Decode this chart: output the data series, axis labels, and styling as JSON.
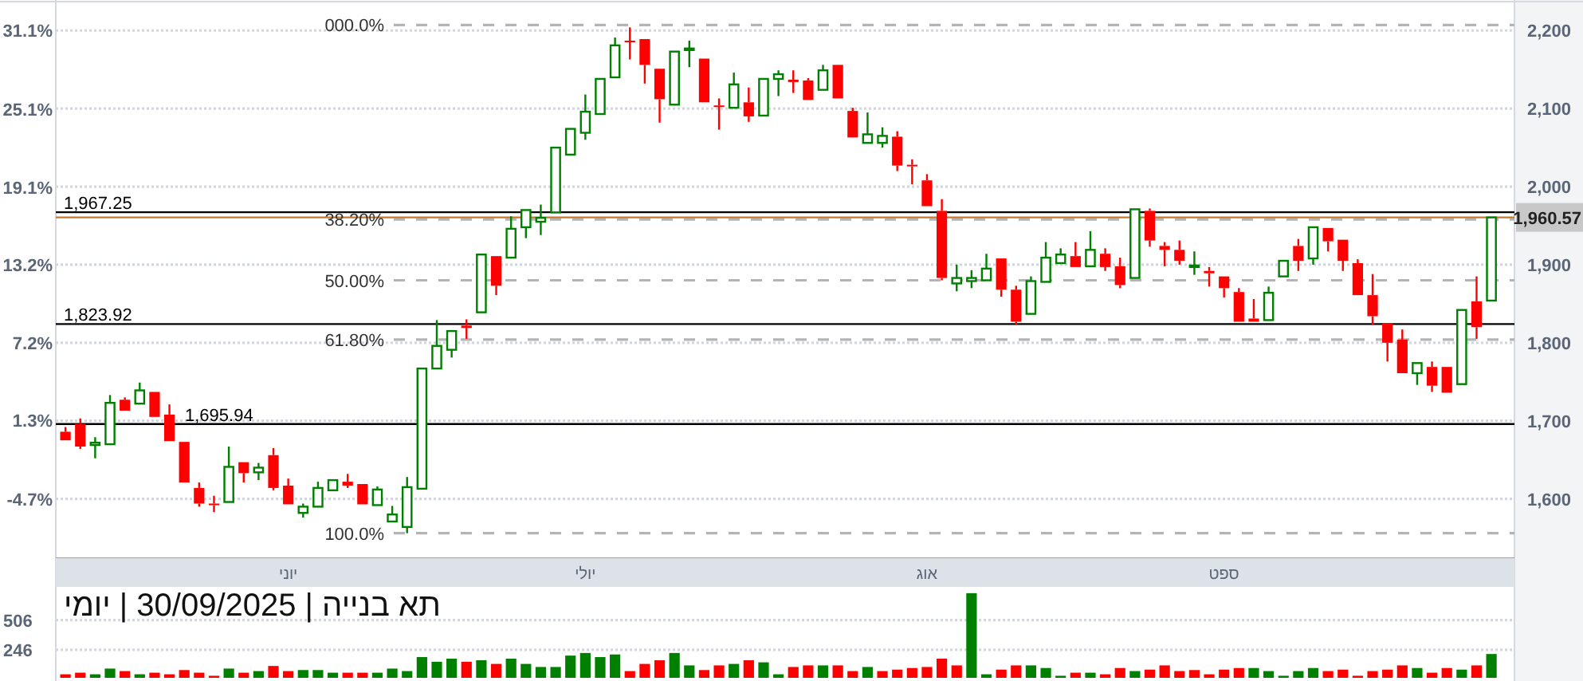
{
  "chart_data": [
    {
      "type": "candlestick",
      "categories": [
        null,
        null,
        null,
        null,
        null,
        null,
        null,
        null,
        null,
        null,
        null,
        null,
        null,
        null,
        null,
        "יוני",
        null,
        null,
        null,
        null,
        null,
        null,
        null,
        null,
        null,
        null,
        null,
        null,
        null,
        null,
        null,
        null,
        null,
        null,
        null,
        "יולי",
        null,
        null,
        null,
        null,
        null,
        null,
        null,
        null,
        null,
        null,
        null,
        null,
        null,
        null,
        null,
        null,
        null,
        null,
        null,
        null,
        null,
        null,
        "אוג",
        null,
        null,
        null,
        null,
        null,
        null,
        null,
        null,
        null,
        null,
        null,
        null,
        null,
        null,
        null,
        null,
        null,
        null,
        null,
        "ספט",
        null,
        null,
        null,
        null,
        null,
        null,
        null,
        null,
        null,
        null,
        null,
        null,
        null,
        null,
        null,
        null,
        null,
        null
      ],
      "ohlc": [
        [
          1686,
          1692,
          1675,
          1675
        ],
        [
          1696,
          1703,
          1664,
          1667
        ],
        [
          1669,
          1679,
          1652,
          1672
        ],
        [
          1670,
          1733,
          1669,
          1723
        ],
        [
          1727,
          1730,
          1712,
          1713
        ],
        [
          1722,
          1749,
          1720,
          1739
        ],
        [
          1737,
          1737,
          1704,
          1705
        ],
        [
          1708,
          1721,
          1674,
          1674
        ],
        [
          1673,
          1674,
          1619,
          1621
        ],
        [
          1614,
          1621,
          1590,
          1594
        ],
        [
          1594,
          1604,
          1583,
          1592
        ],
        [
          1596,
          1667,
          1595,
          1641
        ],
        [
          1647,
          1647,
          1621,
          1633
        ],
        [
          1634,
          1646,
          1624,
          1640
        ],
        [
          1656,
          1665,
          1611,
          1614
        ],
        [
          1617,
          1626,
          1592,
          1593
        ],
        [
          1582,
          1594,
          1576,
          1590
        ],
        [
          1590,
          1622,
          1589,
          1614
        ],
        [
          1611,
          1626,
          1609,
          1624
        ],
        [
          1622,
          1632,
          1614,
          1617
        ],
        [
          1619,
          1619,
          1592,
          1593
        ],
        [
          1592,
          1616,
          1590,
          1612
        ],
        [
          1571,
          1591,
          1570,
          1580
        ],
        [
          1564,
          1628,
          1556,
          1615
        ],
        [
          1613,
          1768,
          1612,
          1767
        ],
        [
          1767,
          1829,
          1766,
          1796
        ],
        [
          1791,
          1816,
          1781,
          1815
        ],
        [
          1822,
          1830,
          1805,
          1819
        ],
        [
          1839,
          1914,
          1838,
          1913
        ],
        [
          1911,
          1911,
          1861,
          1873
        ],
        [
          1909,
          1962,
          1907,
          1946
        ],
        [
          1948,
          1972,
          1934,
          1970
        ],
        [
          1955,
          1977,
          1938,
          1960
        ],
        [
          1967,
          2051,
          1966,
          2050
        ],
        [
          2041,
          2075,
          2039,
          2074
        ],
        [
          2069,
          2118,
          2060,
          2096
        ],
        [
          2093,
          2139,
          2092,
          2138
        ],
        [
          2140,
          2191,
          2139,
          2181
        ],
        [
          2187,
          2204,
          2163,
          2185
        ],
        [
          2189,
          2189,
          2132,
          2156
        ],
        [
          2151,
          2151,
          2082,
          2112
        ],
        [
          2105,
          2174,
          2104,
          2173
        ],
        [
          2175,
          2187,
          2153,
          2177
        ],
        [
          2164,
          2164,
          2106,
          2108
        ],
        [
          2104,
          2113,
          2073,
          2103
        ],
        [
          2101,
          2146,
          2100,
          2131
        ],
        [
          2108,
          2127,
          2083,
          2090
        ],
        [
          2091,
          2139,
          2090,
          2138
        ],
        [
          2138,
          2149,
          2116,
          2144
        ],
        [
          2137,
          2149,
          2120,
          2134
        ],
        [
          2136,
          2139,
          2110,
          2111
        ],
        [
          2124,
          2156,
          2123,
          2149
        ],
        [
          2156,
          2156,
          2112,
          2113
        ],
        [
          2097,
          2101,
          2062,
          2063
        ],
        [
          2056,
          2095,
          2055,
          2067
        ],
        [
          2056,
          2076,
          2050,
          2065
        ],
        [
          2064,
          2071,
          2020,
          2027
        ],
        [
          2028,
          2035,
          2003,
          2026
        ],
        [
          2008,
          2016,
          1973,
          1975
        ],
        [
          1969,
          1984,
          1880,
          1883
        ],
        [
          1876,
          1900,
          1866,
          1883
        ],
        [
          1879,
          1893,
          1870,
          1883
        ],
        [
          1880,
          1914,
          1878,
          1895
        ],
        [
          1908,
          1908,
          1859,
          1868
        ],
        [
          1868,
          1873,
          1823,
          1827
        ],
        [
          1837,
          1885,
          1836,
          1879
        ],
        [
          1878,
          1929,
          1876,
          1909
        ],
        [
          1902,
          1921,
          1900,
          1913
        ],
        [
          1911,
          1929,
          1895,
          1897
        ],
        [
          1898,
          1943,
          1897,
          1919
        ],
        [
          1914,
          1921,
          1892,
          1897
        ],
        [
          1898,
          1909,
          1870,
          1874
        ],
        [
          1883,
          1973,
          1882,
          1971
        ],
        [
          1969,
          1972,
          1923,
          1931
        ],
        [
          1924,
          1929,
          1898,
          1919
        ],
        [
          1919,
          1931,
          1900,
          1905
        ],
        [
          1898,
          1917,
          1887,
          1899
        ],
        [
          1892,
          1897,
          1872,
          1889
        ],
        [
          1885,
          1887,
          1858,
          1870
        ],
        [
          1865,
          1870,
          1826,
          1827
        ],
        [
          1831,
          1856,
          1826,
          1827
        ],
        [
          1829,
          1872,
          1827,
          1864
        ],
        [
          1885,
          1906,
          1884,
          1905
        ],
        [
          1924,
          1933,
          1892,
          1905
        ],
        [
          1908,
          1949,
          1900,
          1948
        ],
        [
          1947,
          1947,
          1917,
          1930
        ],
        [
          1932,
          1932,
          1892,
          1905
        ],
        [
          1902,
          1907,
          1860,
          1861
        ],
        [
          1861,
          1888,
          1823,
          1834
        ],
        [
          1825,
          1825,
          1776,
          1800
        ],
        [
          1804,
          1817,
          1760,
          1761
        ],
        [
          1761,
          1775,
          1746,
          1774
        ],
        [
          1769,
          1776,
          1737,
          1745
        ],
        [
          1769,
          1769,
          1735,
          1736
        ],
        [
          1747,
          1843,
          1746,
          1842
        ],
        [
          1853,
          1885,
          1805,
          1820
        ],
        [
          1854,
          1962,
          1853,
          1960.57
        ]
      ],
      "colors": [
        "#ff0000",
        "#ff0000",
        "#008000",
        "#008000",
        "#ff0000",
        "#008000",
        "#ff0000",
        "#ff0000",
        "#ff0000",
        "#ff0000",
        "#ff0000",
        "#008000",
        "#ff0000",
        "#008000",
        "#ff0000",
        "#ff0000",
        "#008000",
        "#008000",
        "#008000",
        "#ff0000",
        "#ff0000",
        "#008000",
        "#008000",
        "#008000",
        "#008000",
        "#008000",
        "#008000",
        "#ff0000",
        "#008000",
        "#ff0000",
        "#008000",
        "#008000",
        "#008000",
        "#008000",
        "#008000",
        "#008000",
        "#008000",
        "#008000",
        "#ff0000",
        "#ff0000",
        "#ff0000",
        "#008000",
        "#008000",
        "#ff0000",
        "#ff0000",
        "#008000",
        "#ff0000",
        "#008000",
        "#008000",
        "#ff0000",
        "#ff0000",
        "#008000",
        "#ff0000",
        "#ff0000",
        "#008000",
        "#008000",
        "#ff0000",
        "#ff0000",
        "#ff0000",
        "#ff0000",
        "#008000",
        "#008000",
        "#008000",
        "#ff0000",
        "#ff0000",
        "#008000",
        "#008000",
        "#008000",
        "#ff0000",
        "#008000",
        "#ff0000",
        "#ff0000",
        "#008000",
        "#ff0000",
        "#ff0000",
        "#ff0000",
        "#008000",
        "#ff0000",
        "#ff0000",
        "#ff0000",
        "#ff0000",
        "#008000",
        "#008000",
        "#ff0000",
        "#008000",
        "#ff0000",
        "#ff0000",
        "#ff0000",
        "#ff0000",
        "#ff0000",
        "#ff0000",
        "#008000",
        "#ff0000",
        "#ff0000",
        "#008000",
        "#ff0000",
        "#008000"
      ],
      "ylim": [
        1524,
        2235
      ],
      "yticks": [
        {
          "value": 1600,
          "label": "1,600"
        },
        {
          "value": 1700,
          "label": "1,700"
        },
        {
          "value": 1800,
          "label": "1,800"
        },
        {
          "value": 1900,
          "label": "1,900"
        },
        {
          "value": 2000,
          "label": "2,000"
        },
        {
          "value": 2100,
          "label": "2,100"
        },
        {
          "value": 2200,
          "label": "2,200"
        }
      ],
      "y2lim": [
        -9.23,
        33.19
      ],
      "y2ticks": [
        {
          "value": -4.7,
          "label": "-4.7%"
        },
        {
          "value": 1.3,
          "label": "1.3%"
        },
        {
          "value": 7.2,
          "label": "7.2%"
        },
        {
          "value": 13.2,
          "label": "13.2%"
        },
        {
          "value": 19.1,
          "label": "19.1%"
        },
        {
          "value": 25.1,
          "label": "25.1%"
        },
        {
          "value": 31.1,
          "label": "31.1%"
        }
      ],
      "grid": "y",
      "ref_lines": [
        {
          "axis": "y",
          "value": 2207,
          "color": "#b4b4b4",
          "line_style": "dashed"
        },
        {
          "axis": "y",
          "value": 1958,
          "color": "#b4b4b4",
          "line_style": "dashed"
        },
        {
          "axis": "y",
          "value": 1880,
          "color": "#b4b4b4",
          "line_style": "dashed"
        },
        {
          "axis": "y",
          "value": 1804,
          "color": "#b4b4b4",
          "line_style": "dashed"
        },
        {
          "axis": "y",
          "value": 1556,
          "color": "#b4b4b4",
          "line_style": "dashed"
        },
        {
          "axis": "y",
          "value": 1967.25,
          "label": "1,967.25",
          "color": "#000000",
          "line_style": "solid"
        },
        {
          "axis": "y",
          "value": 1823.92,
          "label": "1,823.92",
          "color": "#000000",
          "line_style": "solid"
        },
        {
          "axis": "y",
          "value": 1695.94,
          "label": "1,695.94",
          "color": "#000000",
          "line_style": "solid"
        },
        {
          "axis": "y",
          "value": 1960.57,
          "label": "1,960.57",
          "color": "#c8782a"
        }
      ],
      "annotations": [
        "000.0%",
        "38.20%",
        "50.00%",
        "61.80%",
        "100.0%"
      ]
    },
    {
      "type": "bar",
      "title": "תא בנייה | 30/09/2025 | יומי",
      "categories": [
        null,
        null,
        null,
        null,
        null,
        null,
        null,
        null,
        null,
        null,
        null,
        null,
        null,
        null,
        null,
        null,
        null,
        null,
        null,
        null,
        null,
        null,
        null,
        null,
        null,
        null,
        null,
        null,
        null,
        null,
        null,
        null,
        null,
        null,
        null,
        null,
        null,
        null,
        null,
        null,
        null,
        null,
        null,
        null,
        null,
        null,
        null,
        null,
        null,
        null,
        null,
        null,
        null,
        null,
        null,
        null,
        null,
        null,
        null,
        null,
        null,
        null,
        null,
        null,
        null,
        null,
        null,
        null,
        null,
        null,
        null,
        null,
        null,
        null,
        null,
        null,
        null,
        null,
        null,
        null,
        null,
        null,
        null,
        null,
        null,
        null,
        null,
        null,
        null,
        null,
        null,
        null,
        null,
        null,
        null,
        null,
        null
      ],
      "values": [
        31,
        45,
        31,
        81,
        59,
        31,
        45,
        31,
        68,
        45,
        18,
        81,
        45,
        59,
        104,
        59,
        68,
        68,
        45,
        45,
        45,
        45,
        81,
        59,
        182,
        141,
        168,
        141,
        154,
        122,
        168,
        122,
        95,
        95,
        195,
        218,
        182,
        205,
        59,
        122,
        154,
        218,
        109,
        68,
        109,
        122,
        154,
        136,
        31,
        95,
        109,
        109,
        109,
        59,
        95,
        59,
        72,
        86,
        95,
        168,
        109,
        743,
        31,
        72,
        109,
        109,
        86,
        18,
        45,
        45,
        31,
        86,
        59,
        72,
        109,
        59,
        68,
        31,
        72,
        86,
        86,
        59,
        18,
        59,
        86,
        59,
        72,
        18,
        59,
        72,
        109,
        86,
        45,
        86,
        72,
        109,
        209
      ],
      "colors": [
        "#ff0000",
        "#ff0000",
        "#008000",
        "#008000",
        "#ff0000",
        "#008000",
        "#ff0000",
        "#ff0000",
        "#ff0000",
        "#ff0000",
        "#ff0000",
        "#008000",
        "#ff0000",
        "#008000",
        "#ff0000",
        "#ff0000",
        "#008000",
        "#008000",
        "#008000",
        "#ff0000",
        "#ff0000",
        "#008000",
        "#008000",
        "#008000",
        "#008000",
        "#008000",
        "#008000",
        "#ff0000",
        "#008000",
        "#ff0000",
        "#008000",
        "#008000",
        "#008000",
        "#008000",
        "#008000",
        "#008000",
        "#008000",
        "#008000",
        "#ff0000",
        "#ff0000",
        "#ff0000",
        "#008000",
        "#008000",
        "#ff0000",
        "#ff0000",
        "#008000",
        "#ff0000",
        "#008000",
        "#008000",
        "#ff0000",
        "#ff0000",
        "#008000",
        "#ff0000",
        "#ff0000",
        "#008000",
        "#ff0000",
        "#ff0000",
        "#ff0000",
        "#ff0000",
        "#ff0000",
        "#ff0000",
        "#008000",
        "#008000",
        "#ff0000",
        "#ff0000",
        "#008000",
        "#008000",
        "#008000",
        "#ff0000",
        "#008000",
        "#ff0000",
        "#ff0000",
        "#008000",
        "#ff0000",
        "#ff0000",
        "#ff0000",
        "#ff0000",
        "#ff0000",
        "#ff0000",
        "#ff0000",
        "#008000",
        "#008000",
        "#008000",
        "#008000",
        "#008000",
        "#ff0000",
        "#ff0000",
        "#ff0000",
        "#ff0000",
        "#ff0000",
        "#ff0000",
        "#008000",
        "#ff0000",
        "#ff0000",
        "#008000",
        "#ff0000",
        "#008000"
      ],
      "ylim": [
        0,
        770
      ],
      "yticks": [
        246,
        506
      ],
      "grid": "y"
    }
  ]
}
